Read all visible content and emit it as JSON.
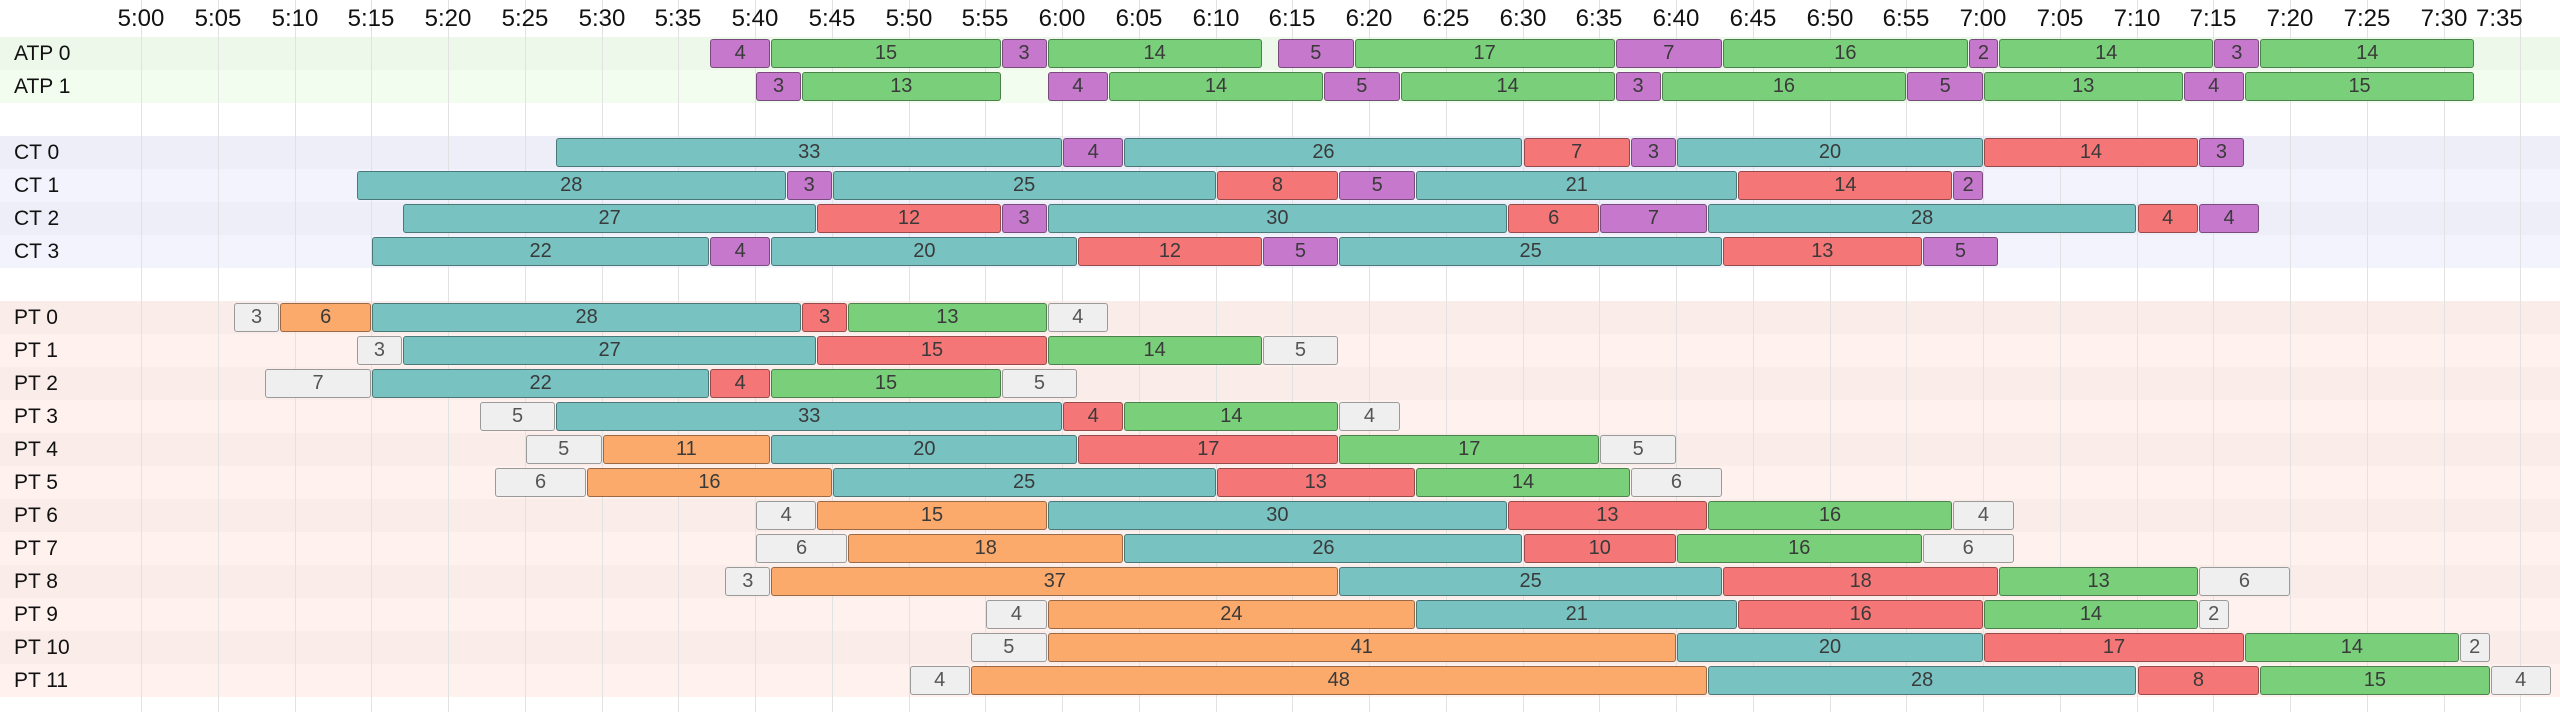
{
  "chart_data": {
    "type": "gantt",
    "x_unit": "minutes",
    "x_ticks": [
      "5:00",
      "5:05",
      "5:10",
      "5:15",
      "5:20",
      "5:25",
      "5:30",
      "5:35",
      "5:40",
      "5:45",
      "5:50",
      "5:55",
      "6:00",
      "6:05",
      "6:10",
      "6:15",
      "6:20",
      "6:25",
      "6:30",
      "6:35",
      "6:40",
      "6:45",
      "6:50",
      "6:55",
      "7:00",
      "7:05",
      "7:10",
      "7:15",
      "7:20",
      "7:25",
      "7:30",
      "7:35"
    ],
    "xlim": [
      "5:00",
      "7:35"
    ],
    "grid": true,
    "categories": {
      "magenta": "#c678cc",
      "green": "#7ad07a",
      "teal": "#78c2c2",
      "red": "#f57676",
      "orange": "#fbaa6c",
      "gray": "#efefef"
    },
    "groups": [
      {
        "band_color": "#eef8ea",
        "rows": [
          {
            "label": "ATP 0",
            "segments": [
              {
                "start": "5:37",
                "dur": 4,
                "cat": "magenta"
              },
              {
                "start": "5:41",
                "dur": 15,
                "cat": "green"
              },
              {
                "start": "5:56",
                "dur": 3,
                "cat": "magenta"
              },
              {
                "start": "5:59",
                "dur": 14,
                "cat": "green"
              },
              {
                "start": "6:14",
                "dur": 5,
                "cat": "magenta"
              },
              {
                "start": "6:19",
                "dur": 17,
                "cat": "green"
              },
              {
                "start": "6:36",
                "dur": 7,
                "cat": "magenta"
              },
              {
                "start": "6:43",
                "dur": 16,
                "cat": "green"
              },
              {
                "start": "6:59",
                "dur": 2,
                "cat": "magenta"
              },
              {
                "start": "7:01",
                "dur": 14,
                "cat": "green"
              },
              {
                "start": "7:15",
                "dur": 3,
                "cat": "magenta"
              },
              {
                "start": "7:18",
                "dur": 14,
                "cat": "green"
              }
            ]
          },
          {
            "label": "ATP 1",
            "segments": [
              {
                "start": "5:40",
                "dur": 3,
                "cat": "magenta"
              },
              {
                "start": "5:43",
                "dur": 13,
                "cat": "green"
              },
              {
                "start": "5:59",
                "dur": 4,
                "cat": "magenta"
              },
              {
                "start": "6:03",
                "dur": 14,
                "cat": "green"
              },
              {
                "start": "6:17",
                "dur": 5,
                "cat": "magenta"
              },
              {
                "start": "6:22",
                "dur": 14,
                "cat": "green"
              },
              {
                "start": "6:36",
                "dur": 3,
                "cat": "magenta"
              },
              {
                "start": "6:39",
                "dur": 16,
                "cat": "green"
              },
              {
                "start": "6:55",
                "dur": 5,
                "cat": "magenta"
              },
              {
                "start": "7:00",
                "dur": 13,
                "cat": "green"
              },
              {
                "start": "7:13",
                "dur": 4,
                "cat": "magenta"
              },
              {
                "start": "7:17",
                "dur": 15,
                "cat": "green"
              }
            ]
          }
        ]
      },
      {
        "band_color": "#eeeef8",
        "rows": [
          {
            "label": "CT 0",
            "segments": [
              {
                "start": "5:27",
                "dur": 33,
                "cat": "teal"
              },
              {
                "start": "6:00",
                "dur": 4,
                "cat": "magenta"
              },
              {
                "start": "6:04",
                "dur": 26,
                "cat": "teal"
              },
              {
                "start": "6:30",
                "dur": 7,
                "cat": "red"
              },
              {
                "start": "6:37",
                "dur": 3,
                "cat": "magenta"
              },
              {
                "start": "6:40",
                "dur": 20,
                "cat": "teal"
              },
              {
                "start": "7:00",
                "dur": 14,
                "cat": "red"
              },
              {
                "start": "7:14",
                "dur": 3,
                "cat": "magenta"
              }
            ]
          },
          {
            "label": "CT 1",
            "segments": [
              {
                "start": "5:14",
                "dur": 28,
                "cat": "teal"
              },
              {
                "start": "5:42",
                "dur": 3,
                "cat": "magenta"
              },
              {
                "start": "5:45",
                "dur": 25,
                "cat": "teal"
              },
              {
                "start": "6:10",
                "dur": 8,
                "cat": "red"
              },
              {
                "start": "6:18",
                "dur": 5,
                "cat": "magenta"
              },
              {
                "start": "6:23",
                "dur": 21,
                "cat": "teal"
              },
              {
                "start": "6:44",
                "dur": 14,
                "cat": "red"
              },
              {
                "start": "6:58",
                "dur": 2,
                "cat": "magenta"
              }
            ]
          },
          {
            "label": "CT 2",
            "segments": [
              {
                "start": "5:17",
                "dur": 27,
                "cat": "teal"
              },
              {
                "start": "5:44",
                "dur": 12,
                "cat": "red"
              },
              {
                "start": "5:56",
                "dur": 3,
                "cat": "magenta"
              },
              {
                "start": "5:59",
                "dur": 30,
                "cat": "teal"
              },
              {
                "start": "6:29",
                "dur": 6,
                "cat": "red"
              },
              {
                "start": "6:35",
                "dur": 7,
                "cat": "magenta"
              },
              {
                "start": "6:42",
                "dur": 28,
                "cat": "teal"
              },
              {
                "start": "7:10",
                "dur": 4,
                "cat": "red"
              },
              {
                "start": "7:14",
                "dur": 4,
                "cat": "magenta"
              }
            ]
          },
          {
            "label": "CT 3",
            "segments": [
              {
                "start": "5:15",
                "dur": 22,
                "cat": "teal"
              },
              {
                "start": "5:37",
                "dur": 4,
                "cat": "magenta"
              },
              {
                "start": "5:41",
                "dur": 20,
                "cat": "teal"
              },
              {
                "start": "6:01",
                "dur": 12,
                "cat": "red"
              },
              {
                "start": "6:13",
                "dur": 5,
                "cat": "magenta"
              },
              {
                "start": "6:18",
                "dur": 25,
                "cat": "teal"
              },
              {
                "start": "6:43",
                "dur": 13,
                "cat": "red"
              },
              {
                "start": "6:56",
                "dur": 5,
                "cat": "magenta"
              }
            ]
          }
        ]
      },
      {
        "band_color": "#f9ece9",
        "rows": [
          {
            "label": "PT 0",
            "segments": [
              {
                "start": "5:06",
                "dur": 3,
                "cat": "gray"
              },
              {
                "start": "5:09",
                "dur": 6,
                "cat": "orange"
              },
              {
                "start": "5:15",
                "dur": 28,
                "cat": "teal"
              },
              {
                "start": "5:43",
                "dur": 3,
                "cat": "red"
              },
              {
                "start": "5:46",
                "dur": 13,
                "cat": "green"
              },
              {
                "start": "5:59",
                "dur": 4,
                "cat": "gray"
              }
            ]
          },
          {
            "label": "PT 1",
            "segments": [
              {
                "start": "5:14",
                "dur": 3,
                "cat": "gray"
              },
              {
                "start": "5:17",
                "dur": 27,
                "cat": "teal"
              },
              {
                "start": "5:44",
                "dur": 15,
                "cat": "red"
              },
              {
                "start": "5:59",
                "dur": 14,
                "cat": "green"
              },
              {
                "start": "6:13",
                "dur": 5,
                "cat": "gray"
              }
            ]
          },
          {
            "label": "PT 2",
            "segments": [
              {
                "start": "5:08",
                "dur": 7,
                "cat": "gray"
              },
              {
                "start": "5:15",
                "dur": 22,
                "cat": "teal"
              },
              {
                "start": "5:37",
                "dur": 4,
                "cat": "red"
              },
              {
                "start": "5:41",
                "dur": 15,
                "cat": "green"
              },
              {
                "start": "5:56",
                "dur": 5,
                "cat": "gray"
              }
            ]
          },
          {
            "label": "PT 3",
            "segments": [
              {
                "start": "5:22",
                "dur": 5,
                "cat": "gray"
              },
              {
                "start": "5:27",
                "dur": 33,
                "cat": "teal"
              },
              {
                "start": "6:00",
                "dur": 4,
                "cat": "red"
              },
              {
                "start": "6:04",
                "dur": 14,
                "cat": "green"
              },
              {
                "start": "6:18",
                "dur": 4,
                "cat": "gray"
              }
            ]
          },
          {
            "label": "PT 4",
            "segments": [
              {
                "start": "5:25",
                "dur": 5,
                "cat": "gray"
              },
              {
                "start": "5:30",
                "dur": 11,
                "cat": "orange"
              },
              {
                "start": "5:41",
                "dur": 20,
                "cat": "teal"
              },
              {
                "start": "6:01",
                "dur": 17,
                "cat": "red"
              },
              {
                "start": "6:18",
                "dur": 17,
                "cat": "green"
              },
              {
                "start": "6:35",
                "dur": 5,
                "cat": "gray"
              }
            ]
          },
          {
            "label": "PT 5",
            "segments": [
              {
                "start": "5:23",
                "dur": 6,
                "cat": "gray"
              },
              {
                "start": "5:29",
                "dur": 16,
                "cat": "orange"
              },
              {
                "start": "5:45",
                "dur": 25,
                "cat": "teal"
              },
              {
                "start": "6:10",
                "dur": 13,
                "cat": "red"
              },
              {
                "start": "6:23",
                "dur": 14,
                "cat": "green"
              },
              {
                "start": "6:37",
                "dur": 6,
                "cat": "gray"
              }
            ]
          },
          {
            "label": "PT 6",
            "segments": [
              {
                "start": "5:40",
                "dur": 4,
                "cat": "gray"
              },
              {
                "start": "5:44",
                "dur": 15,
                "cat": "orange"
              },
              {
                "start": "5:59",
                "dur": 30,
                "cat": "teal"
              },
              {
                "start": "6:29",
                "dur": 13,
                "cat": "red"
              },
              {
                "start": "6:42",
                "dur": 16,
                "cat": "green"
              },
              {
                "start": "6:58",
                "dur": 4,
                "cat": "gray"
              }
            ]
          },
          {
            "label": "PT 7",
            "segments": [
              {
                "start": "5:40",
                "dur": 6,
                "cat": "gray"
              },
              {
                "start": "5:46",
                "dur": 18,
                "cat": "orange"
              },
              {
                "start": "6:04",
                "dur": 26,
                "cat": "teal"
              },
              {
                "start": "6:30",
                "dur": 10,
                "cat": "red"
              },
              {
                "start": "6:40",
                "dur": 16,
                "cat": "green"
              },
              {
                "start": "6:56",
                "dur": 6,
                "cat": "gray"
              }
            ]
          },
          {
            "label": "PT 8",
            "segments": [
              {
                "start": "5:38",
                "dur": 3,
                "cat": "gray"
              },
              {
                "start": "5:41",
                "dur": 37,
                "cat": "orange"
              },
              {
                "start": "6:18",
                "dur": 25,
                "cat": "teal"
              },
              {
                "start": "6:43",
                "dur": 18,
                "cat": "red"
              },
              {
                "start": "7:01",
                "dur": 13,
                "cat": "green"
              },
              {
                "start": "7:14",
                "dur": 6,
                "cat": "gray"
              }
            ]
          },
          {
            "label": "PT 9",
            "segments": [
              {
                "start": "5:55",
                "dur": 4,
                "cat": "gray"
              },
              {
                "start": "5:59",
                "dur": 24,
                "cat": "orange"
              },
              {
                "start": "6:23",
                "dur": 21,
                "cat": "teal"
              },
              {
                "start": "6:44",
                "dur": 16,
                "cat": "red"
              },
              {
                "start": "7:00",
                "dur": 14,
                "cat": "green"
              },
              {
                "start": "7:14",
                "dur": 2,
                "cat": "gray"
              }
            ]
          },
          {
            "label": "PT 10",
            "segments": [
              {
                "start": "5:54",
                "dur": 5,
                "cat": "gray"
              },
              {
                "start": "5:59",
                "dur": 41,
                "cat": "orange"
              },
              {
                "start": "6:40",
                "dur": 20,
                "cat": "teal"
              },
              {
                "start": "7:00",
                "dur": 17,
                "cat": "red"
              },
              {
                "start": "7:17",
                "dur": 14,
                "cat": "green"
              },
              {
                "start": "7:31",
                "dur": 2,
                "cat": "gray"
              }
            ]
          },
          {
            "label": "PT 11",
            "segments": [
              {
                "start": "5:50",
                "dur": 4,
                "cat": "gray"
              },
              {
                "start": "5:54",
                "dur": 48,
                "cat": "orange"
              },
              {
                "start": "6:42",
                "dur": 28,
                "cat": "teal"
              },
              {
                "start": "7:10",
                "dur": 8,
                "cat": "red"
              },
              {
                "start": "7:18",
                "dur": 15,
                "cat": "green"
              },
              {
                "start": "7:33",
                "dur": 4,
                "cat": "gray"
              }
            ]
          }
        ]
      }
    ]
  }
}
